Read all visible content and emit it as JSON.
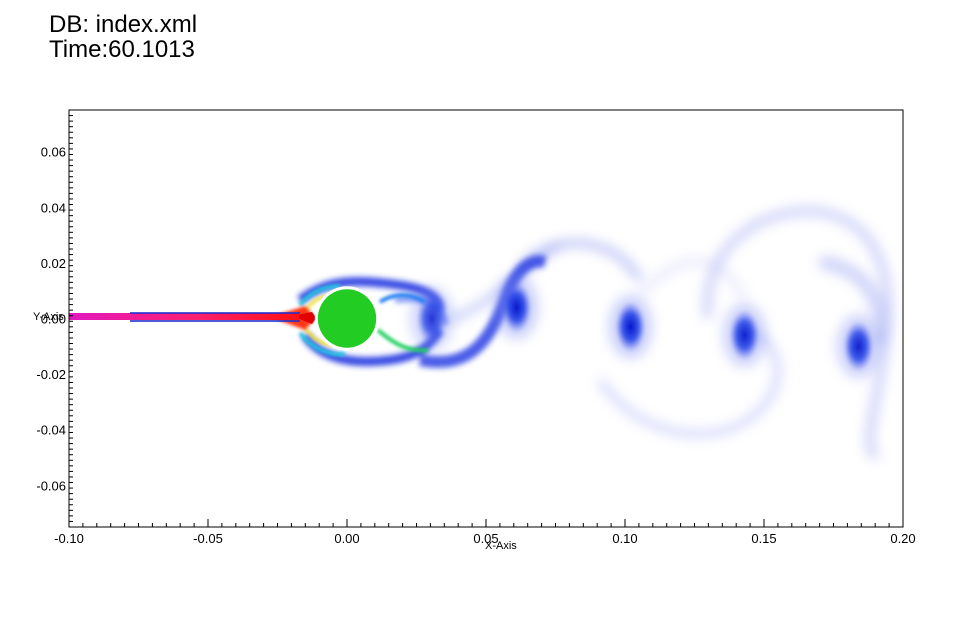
{
  "header": {
    "db_label": "DB: index.xml",
    "time_label": "Time:60.1013"
  },
  "plot": {
    "xlabel": "X-Axis",
    "ylabel": "Y-Axis",
    "xlim": [
      -0.1,
      0.2
    ],
    "ylim": [
      -0.075,
      0.075
    ],
    "xticks": [
      "-0.10",
      "-0.05",
      "0.00",
      "0.05",
      "0.10",
      "0.15",
      "0.20"
    ],
    "yticks": [
      "0.06",
      "0.04",
      "0.02",
      "0.00",
      "-0.02",
      "-0.04",
      "-0.06"
    ],
    "cylinder": {
      "center": [
        0.0,
        0.0
      ],
      "radius": 0.0105,
      "color": "#22cc22"
    },
    "vortices": [
      {
        "x": 0.0305,
        "y": 0.0,
        "strength": 0.85
      },
      {
        "x": 0.061,
        "y": 0.004,
        "strength": 1.0
      },
      {
        "x": 0.102,
        "y": -0.003,
        "strength": 1.0
      },
      {
        "x": 0.143,
        "y": -0.006,
        "strength": 0.95
      },
      {
        "x": 0.184,
        "y": -0.01,
        "strength": 0.95
      }
    ],
    "colors": {
      "vortex": "#1020d8",
      "inflow_line": "#e020a0",
      "wake_shear": "#ff2000"
    }
  }
}
